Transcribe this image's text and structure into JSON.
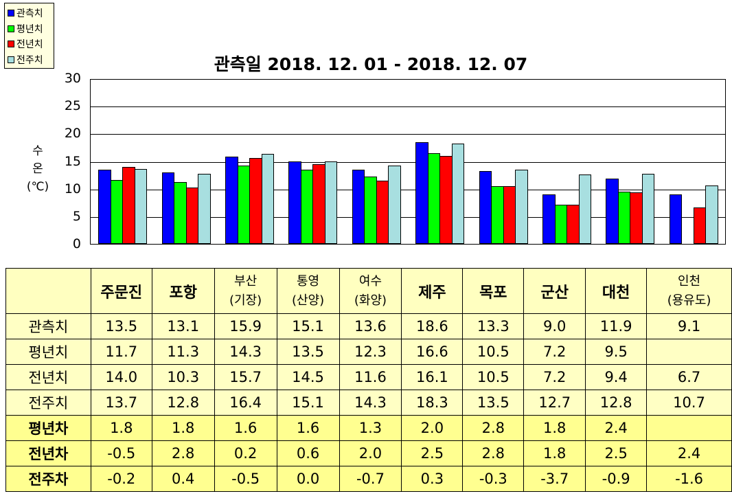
{
  "legend": {
    "items": [
      {
        "label": "관측치",
        "color": "#0000ff"
      },
      {
        "label": "평년치",
        "color": "#00ff00"
      },
      {
        "label": "전년치",
        "color": "#ff0000"
      },
      {
        "label": "전주치",
        "color": "#a8dfe0"
      }
    ]
  },
  "title": "관측일 2018. 12. 01 - 2018. 12. 07",
  "ylabel": {
    "line1": "수",
    "line2": "온",
    "line3": "(℃)"
  },
  "yticks": [
    "30",
    "25",
    "20",
    "15",
    "10",
    "5",
    "0"
  ],
  "table": {
    "columns": [
      {
        "line1": "주문진",
        "line2": ""
      },
      {
        "line1": "포항",
        "line2": ""
      },
      {
        "line1": "부산",
        "line2": "(기장)"
      },
      {
        "line1": "통영",
        "line2": "(산양)"
      },
      {
        "line1": "여수",
        "line2": "(화양)"
      },
      {
        "line1": "제주",
        "line2": ""
      },
      {
        "line1": "목포",
        "line2": ""
      },
      {
        "line1": "군산",
        "line2": ""
      },
      {
        "line1": "대천",
        "line2": ""
      },
      {
        "line1": "인천",
        "line2": "(용유도)"
      }
    ],
    "rows": [
      {
        "label": "관측치",
        "values": [
          "13.5",
          "13.1",
          "15.9",
          "15.1",
          "13.6",
          "18.6",
          "13.3",
          "9.0",
          "11.9",
          "9.1"
        ]
      },
      {
        "label": "평년치",
        "values": [
          "11.7",
          "11.3",
          "14.3",
          "13.5",
          "12.3",
          "16.6",
          "10.5",
          "7.2",
          "9.5",
          ""
        ]
      },
      {
        "label": "전년치",
        "values": [
          "14.0",
          "10.3",
          "15.7",
          "14.5",
          "11.6",
          "16.1",
          "10.5",
          "7.2",
          "9.4",
          "6.7"
        ]
      },
      {
        "label": "전주치",
        "values": [
          "13.7",
          "12.8",
          "16.4",
          "15.1",
          "14.3",
          "18.3",
          "13.5",
          "12.7",
          "12.8",
          "10.7"
        ]
      },
      {
        "label": "평년차",
        "values": [
          "1.8",
          "1.8",
          "1.6",
          "1.6",
          "1.3",
          "2.0",
          "2.8",
          "1.8",
          "2.4",
          ""
        ]
      },
      {
        "label": "전년차",
        "values": [
          "-0.5",
          "2.8",
          "0.2",
          "0.6",
          "2.0",
          "2.5",
          "2.8",
          "1.8",
          "2.5",
          "2.4"
        ]
      },
      {
        "label": "전주차",
        "values": [
          "-0.2",
          "0.4",
          "-0.5",
          "0.0",
          "-0.7",
          "0.3",
          "-0.3",
          "-3.7",
          "-0.9",
          "-1.6"
        ]
      }
    ]
  },
  "chart_data": {
    "type": "bar",
    "title": "관측일 2018. 12. 01 - 2018. 12. 07",
    "xlabel": "",
    "ylabel": "수온 (℃)",
    "ylim": [
      0,
      30
    ],
    "yticks": [
      0,
      5,
      10,
      15,
      20,
      25,
      30
    ],
    "grid": true,
    "legend_position": "top-left",
    "categories": [
      "주문진",
      "포항",
      "부산(기장)",
      "통영(산양)",
      "여수(화양)",
      "제주",
      "목포",
      "군산",
      "대천",
      "인천(용유도)"
    ],
    "series": [
      {
        "name": "관측치",
        "color": "#0000ff",
        "values": [
          13.5,
          13.1,
          15.9,
          15.1,
          13.6,
          18.6,
          13.3,
          9.0,
          11.9,
          9.1
        ]
      },
      {
        "name": "평년치",
        "color": "#00ff00",
        "values": [
          11.7,
          11.3,
          14.3,
          13.5,
          12.3,
          16.6,
          10.5,
          7.2,
          9.5,
          null
        ]
      },
      {
        "name": "전년치",
        "color": "#ff0000",
        "values": [
          14.0,
          10.3,
          15.7,
          14.5,
          11.6,
          16.1,
          10.5,
          7.2,
          9.4,
          6.7
        ]
      },
      {
        "name": "전주치",
        "color": "#a8dfe0",
        "values": [
          13.7,
          12.8,
          16.4,
          15.1,
          14.3,
          18.3,
          13.5,
          12.7,
          12.8,
          10.7
        ]
      }
    ]
  }
}
